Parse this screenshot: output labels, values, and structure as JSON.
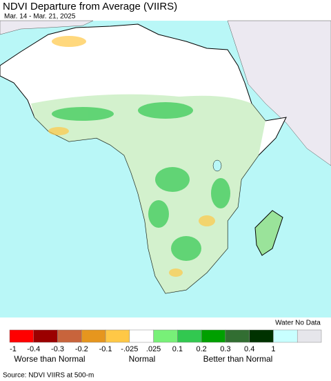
{
  "title": "NDVI Departure from Average (VIIRS)",
  "subtitle": "Mar. 14 - Mar. 21, 2025",
  "legend": {
    "water_label": "Water No Data",
    "colors": [
      "#ff0000",
      "#9b0000",
      "#c8643c",
      "#e6961e",
      "#ffc846",
      "#ffffff",
      "#78f078",
      "#32c850",
      "#00a000",
      "#326e32",
      "#003200",
      "#c8ffff",
      "#e6e6eb"
    ],
    "tick_labels": [
      "-1",
      "-0.4",
      "-0.3",
      "-0.2",
      "-0.1",
      "-.025",
      ".025",
      "0.1",
      "0.2",
      "0.3",
      "0.4",
      "1"
    ],
    "group_labels": [
      "Worse than Normal",
      "Normal",
      "Better than Normal"
    ]
  },
  "source": "Source: NDVI VIIRS at 500-m"
}
